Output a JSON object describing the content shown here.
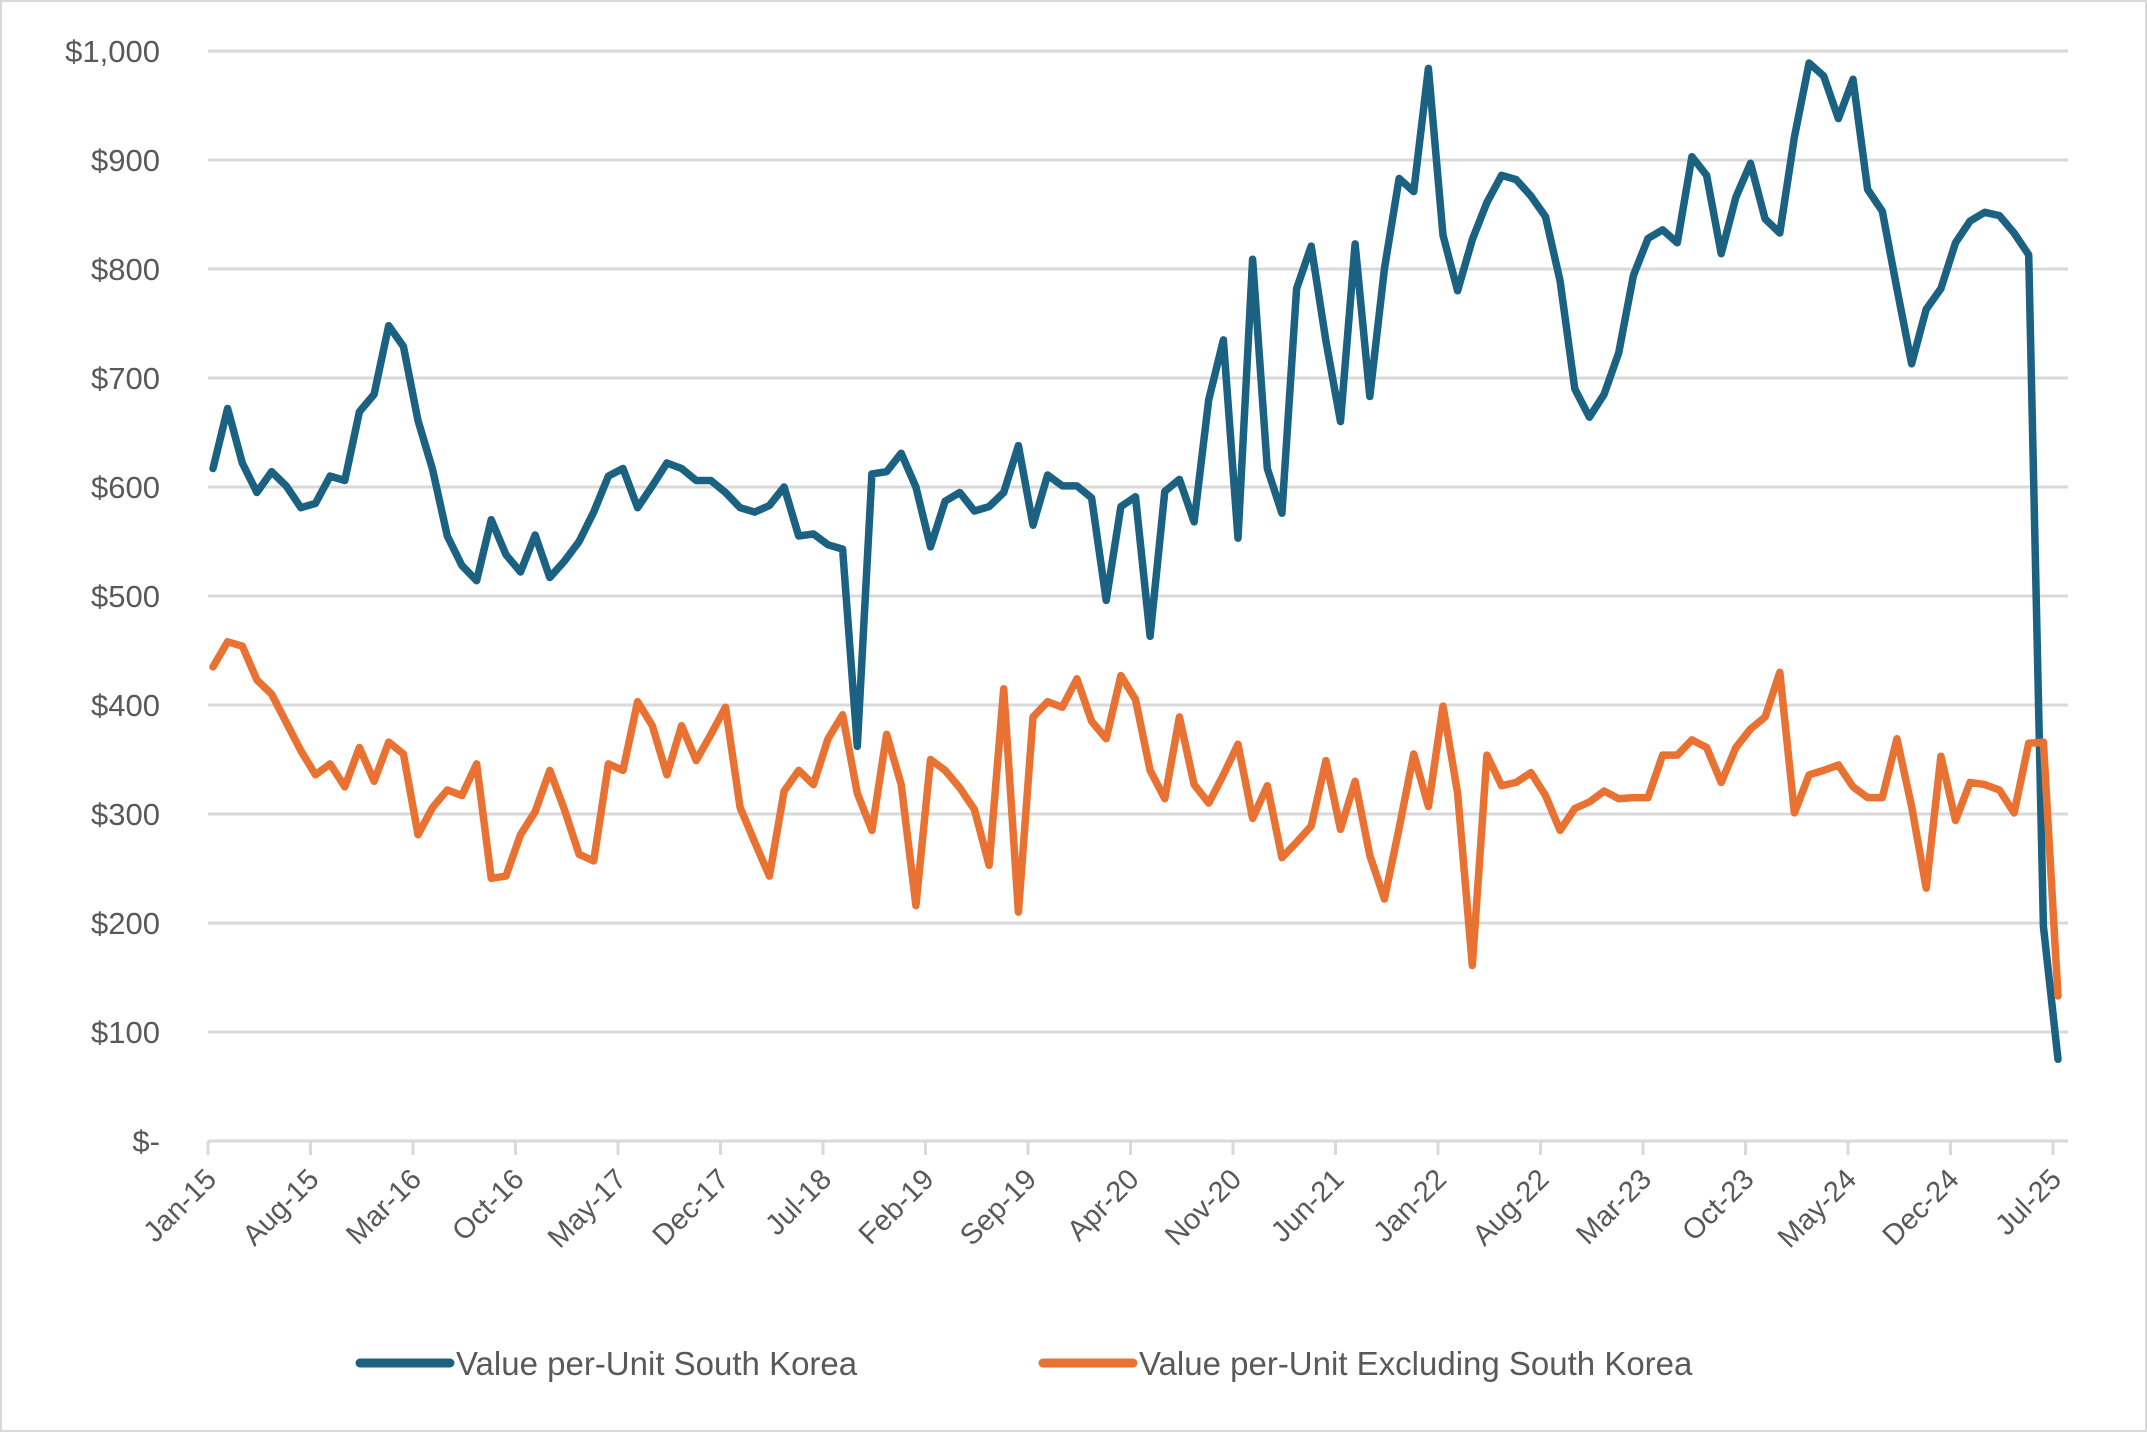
{
  "chart_data": {
    "type": "line",
    "title": "",
    "xlabel": "",
    "ylabel": "",
    "ylim": [
      0,
      1000
    ],
    "grid": true,
    "legend_position": "bottom",
    "y_ticks": [
      "$-",
      "$100",
      "$200",
      "$300",
      "$400",
      "$500",
      "$600",
      "$700",
      "$800",
      "$900",
      "$1,000"
    ],
    "y_tick_values": [
      0,
      100,
      200,
      300,
      400,
      500,
      600,
      700,
      800,
      900,
      1000
    ],
    "x_tick_labels": [
      "Jan-15",
      "Aug-15",
      "Mar-16",
      "Oct-16",
      "May-17",
      "Dec-17",
      "Jul-18",
      "Feb-19",
      "Sep-19",
      "Apr-20",
      "Nov-20",
      "Jun-21",
      "Jan-22",
      "Aug-22",
      "Mar-23",
      "Oct-23",
      "May-24",
      "Dec-24",
      "Jul-25"
    ],
    "x_start": "Jan-15",
    "x_frequency": "monthly",
    "series": [
      {
        "name": "Value per-Unit South Korea",
        "color": "#1a6182",
        "values": [
          617,
          672,
          622,
          595,
          614,
          601,
          581,
          585,
          610,
          606,
          669,
          685,
          748,
          729,
          661,
          616,
          555,
          528,
          514,
          570,
          538,
          522,
          556,
          517,
          532,
          550,
          577,
          610,
          617,
          581,
          601,
          622,
          617,
          606,
          606,
          595,
          581,
          577,
          583,
          600,
          555,
          557,
          547,
          543,
          362,
          612,
          614,
          631,
          600,
          545,
          587,
          595,
          578,
          582,
          595,
          638,
          565,
          611,
          601,
          601,
          590,
          496,
          582,
          591,
          463,
          596,
          607,
          568,
          680,
          735,
          553,
          809,
          617,
          576,
          782,
          821,
          734,
          660,
          823,
          683,
          800,
          883,
          871,
          984,
          831,
          780,
          827,
          861,
          886,
          882,
          867,
          848,
          789,
          690,
          664,
          685,
          723,
          794,
          828,
          836,
          824,
          903,
          886,
          814,
          866,
          897,
          846,
          833,
          921,
          989,
          977,
          938,
          974,
          873,
          853,
          782,
          713,
          763,
          782,
          824,
          844,
          852,
          849,
          833,
          813,
          197,
          75
        ]
      },
      {
        "name": "Value per-Unit Excluding South Korea",
        "color": "#e97132",
        "values": [
          435,
          458,
          454,
          423,
          410,
          384,
          358,
          336,
          346,
          325,
          361,
          330,
          366,
          355,
          281,
          306,
          322,
          317,
          346,
          241,
          243,
          281,
          302,
          340,
          304,
          263,
          257,
          346,
          340,
          403,
          381,
          336,
          381,
          349,
          373,
          398,
          306,
          274,
          243,
          321,
          340,
          327,
          369,
          391,
          319,
          285,
          373,
          327,
          216,
          350,
          340,
          324,
          304,
          253,
          415,
          210,
          389,
          403,
          398,
          424,
          385,
          369,
          427,
          405,
          340,
          314,
          389,
          327,
          310,
          336,
          364,
          296,
          326,
          260,
          274,
          289,
          349,
          286,
          330,
          262,
          222,
          287,
          355,
          307,
          399,
          319,
          161,
          354,
          326,
          329,
          338,
          317,
          285,
          305,
          311,
          321,
          314,
          315,
          315,
          354,
          354,
          368,
          361,
          329,
          361,
          378,
          389,
          430,
          301,
          336,
          340,
          345,
          325,
          315,
          315,
          369,
          307,
          232,
          353,
          294,
          329,
          327,
          322,
          301,
          365,
          366,
          133
        ]
      }
    ]
  }
}
